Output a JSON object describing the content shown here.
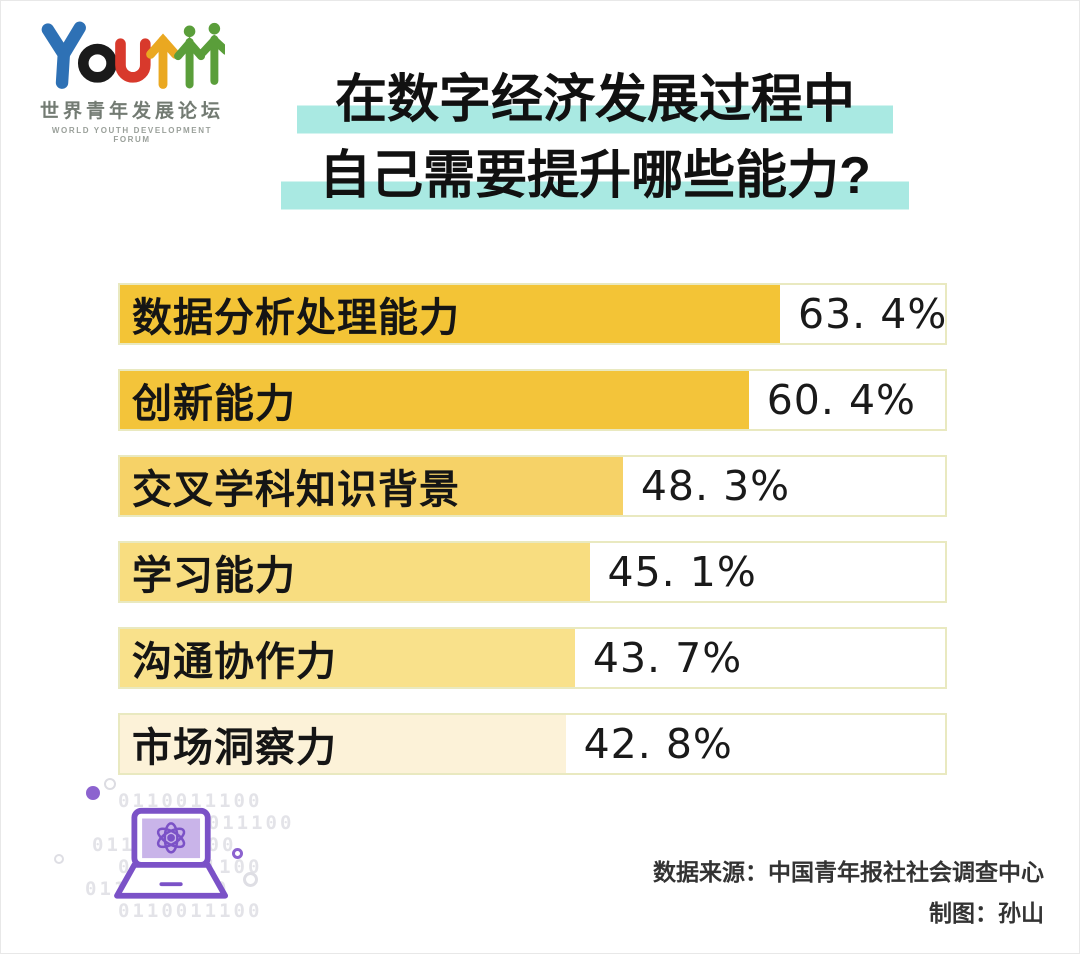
{
  "logo": {
    "wordmark": "Youth",
    "subtitle_cn": "世界青年发展论坛",
    "subtitle_en": "WORLD YOUTH DEVELOPMENT FORUM",
    "letter_colors": [
      "#2e71b5",
      "#1a1a1a",
      "#d8392c",
      "#eaa821",
      "#5a9e3a",
      "#5a9e3a"
    ]
  },
  "title": {
    "line1": "在数字经济发展过程中",
    "line2": "自己需要提升哪些能力?",
    "highlight_color": "#a9e9e2"
  },
  "chart_data": {
    "type": "bar",
    "orientation": "horizontal",
    "title": "在数字经济发展过程中自己需要提升哪些能力？",
    "categories": [
      "数据分析处理能力",
      "创新能力",
      "交叉学科知识背景",
      "学习能力",
      "沟通协作力",
      "市场洞察力"
    ],
    "values": [
      63.4,
      60.4,
      48.3,
      45.1,
      43.7,
      42.8
    ],
    "value_labels": [
      "63. 4%",
      "60. 4%",
      "48. 3%",
      "45. 1%",
      "43. 7%",
      "42. 8%"
    ],
    "bar_colors": [
      "#f3c436",
      "#f3c43a",
      "#f6d267",
      "#f8dd80",
      "#f9e18b",
      "#fcf2d8"
    ],
    "xlim": [
      0,
      79.25
    ],
    "grid": false,
    "legend": false,
    "value_label_position": "right-of-bar"
  },
  "footer": {
    "source": "数据来源：中国青年报社社会调查中心",
    "credit": "制图：孙山"
  },
  "decor": {
    "binary_string": "0110011100",
    "accent_purple": "#7b52c7"
  }
}
